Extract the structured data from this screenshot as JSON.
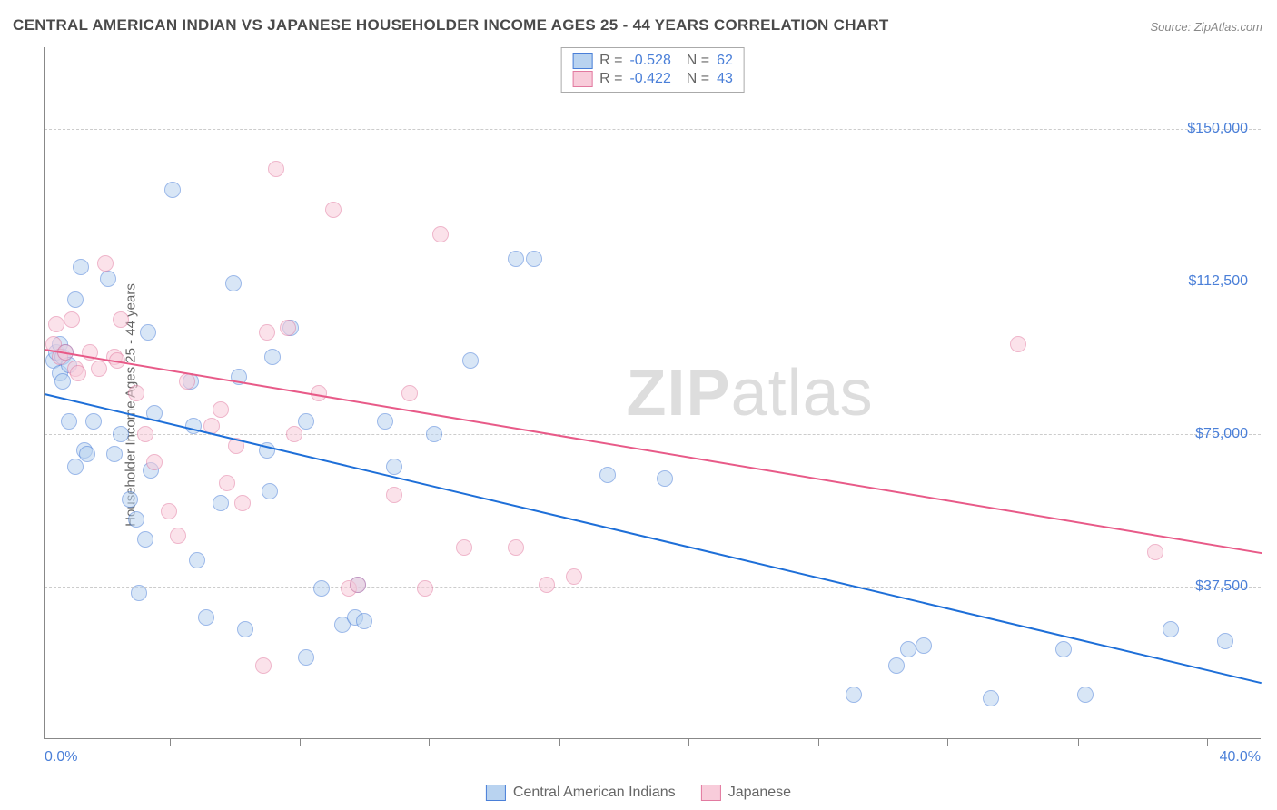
{
  "title": "CENTRAL AMERICAN INDIAN VS JAPANESE HOUSEHOLDER INCOME AGES 25 - 44 YEARS CORRELATION CHART",
  "source": "Source: ZipAtlas.com",
  "ylabel": "Householder Income Ages 25 - 44 years",
  "watermark_bold": "ZIP",
  "watermark_light": "atlas",
  "chart": {
    "type": "scatter",
    "xlim": [
      0,
      40
    ],
    "ylim": [
      0,
      170000
    ],
    "x_unit": "%",
    "y_unit": "$",
    "xtick_positions": [
      0.103,
      0.21,
      0.316,
      0.423,
      0.529,
      0.636,
      0.742,
      0.849,
      0.955
    ],
    "x_min_label": "0.0%",
    "x_max_label": "40.0%",
    "y_gridlines": [
      {
        "value": 37500,
        "label": "$37,500"
      },
      {
        "value": 75000,
        "label": "$75,000"
      },
      {
        "value": 112500,
        "label": "$112,500"
      },
      {
        "value": 150000,
        "label": "$150,000"
      }
    ],
    "grid_color": "#cccccc",
    "axis_color": "#888888",
    "background_color": "#ffffff",
    "label_color": "#4a7fd8",
    "title_color": "#4a4a4a",
    "title_fontsize": 17,
    "label_fontsize": 16,
    "point_radius": 9,
    "point_opacity": 0.55,
    "series": [
      {
        "name": "Central American Indians",
        "color": "#6fa5e0",
        "fill": "#b9d3f0",
        "border": "#4a7fd8",
        "R": "-0.528",
        "N": "62",
        "trend": {
          "x1": 0,
          "y1": 85000,
          "x2": 40,
          "y2": 14000,
          "color": "#1e6fd8",
          "width": 2
        },
        "points": [
          [
            0.3,
            93000
          ],
          [
            0.4,
            95000
          ],
          [
            0.5,
            90000
          ],
          [
            0.5,
            97000
          ],
          [
            0.6,
            94000
          ],
          [
            0.6,
            88000
          ],
          [
            0.7,
            95000
          ],
          [
            0.8,
            78000
          ],
          [
            0.8,
            92000
          ],
          [
            1.0,
            67000
          ],
          [
            1.0,
            108000
          ],
          [
            1.2,
            116000
          ],
          [
            1.3,
            71000
          ],
          [
            1.4,
            70000
          ],
          [
            1.6,
            78000
          ],
          [
            2.1,
            113000
          ],
          [
            2.3,
            70000
          ],
          [
            2.5,
            75000
          ],
          [
            2.8,
            59000
          ],
          [
            3.0,
            54000
          ],
          [
            3.1,
            36000
          ],
          [
            3.3,
            49000
          ],
          [
            3.4,
            100000
          ],
          [
            3.5,
            66000
          ],
          [
            3.6,
            80000
          ],
          [
            4.2,
            135000
          ],
          [
            4.8,
            88000
          ],
          [
            4.9,
            77000
          ],
          [
            5.0,
            44000
          ],
          [
            5.3,
            30000
          ],
          [
            5.8,
            58000
          ],
          [
            6.2,
            112000
          ],
          [
            6.4,
            89000
          ],
          [
            6.6,
            27000
          ],
          [
            7.3,
            71000
          ],
          [
            7.4,
            61000
          ],
          [
            7.5,
            94000
          ],
          [
            8.1,
            101000
          ],
          [
            8.6,
            78000
          ],
          [
            8.6,
            20000
          ],
          [
            9.1,
            37000
          ],
          [
            9.8,
            28000
          ],
          [
            10.2,
            30000
          ],
          [
            10.3,
            38000
          ],
          [
            10.5,
            29000
          ],
          [
            11.2,
            78000
          ],
          [
            11.5,
            67000
          ],
          [
            12.8,
            75000
          ],
          [
            14.0,
            93000
          ],
          [
            15.5,
            118000
          ],
          [
            16.1,
            118000
          ],
          [
            18.5,
            65000
          ],
          [
            20.4,
            64000
          ],
          [
            26.6,
            11000
          ],
          [
            28.0,
            18000
          ],
          [
            28.4,
            22000
          ],
          [
            28.9,
            23000
          ],
          [
            31.1,
            10000
          ],
          [
            33.5,
            22000
          ],
          [
            34.2,
            11000
          ],
          [
            37.0,
            27000
          ],
          [
            38.8,
            24000
          ]
        ]
      },
      {
        "name": "Japanese",
        "color": "#f0a8c0",
        "fill": "#f8ccda",
        "border": "#e27aa0",
        "R": "-0.422",
        "N": "43",
        "trend": {
          "x1": 0,
          "y1": 96000,
          "x2": 40,
          "y2": 46000,
          "color": "#e85a88",
          "width": 2
        },
        "points": [
          [
            0.3,
            97000
          ],
          [
            0.4,
            102000
          ],
          [
            0.5,
            94000
          ],
          [
            0.7,
            95000
          ],
          [
            0.9,
            103000
          ],
          [
            1.0,
            91000
          ],
          [
            1.1,
            90000
          ],
          [
            1.5,
            95000
          ],
          [
            1.8,
            91000
          ],
          [
            2.0,
            117000
          ],
          [
            2.3,
            94000
          ],
          [
            2.4,
            93000
          ],
          [
            2.5,
            103000
          ],
          [
            3.0,
            85000
          ],
          [
            3.3,
            75000
          ],
          [
            3.6,
            68000
          ],
          [
            4.1,
            56000
          ],
          [
            4.4,
            50000
          ],
          [
            4.7,
            88000
          ],
          [
            5.5,
            77000
          ],
          [
            5.8,
            81000
          ],
          [
            6.0,
            63000
          ],
          [
            6.3,
            72000
          ],
          [
            6.5,
            58000
          ],
          [
            7.3,
            100000
          ],
          [
            7.6,
            140000
          ],
          [
            8.0,
            101000
          ],
          [
            8.2,
            75000
          ],
          [
            9.0,
            85000
          ],
          [
            9.5,
            130000
          ],
          [
            10.0,
            37000
          ],
          [
            10.3,
            38000
          ],
          [
            11.5,
            60000
          ],
          [
            12.0,
            85000
          ],
          [
            12.5,
            37000
          ],
          [
            13.0,
            124000
          ],
          [
            13.8,
            47000
          ],
          [
            15.5,
            47000
          ],
          [
            16.5,
            38000
          ],
          [
            17.4,
            40000
          ],
          [
            32.0,
            97000
          ],
          [
            36.5,
            46000
          ],
          [
            7.2,
            18000
          ]
        ]
      }
    ]
  },
  "legend_bottom": [
    {
      "label": "Central American Indians",
      "fill": "#b9d3f0",
      "border": "#4a7fd8"
    },
    {
      "label": "Japanese",
      "fill": "#f8ccda",
      "border": "#e27aa0"
    }
  ]
}
